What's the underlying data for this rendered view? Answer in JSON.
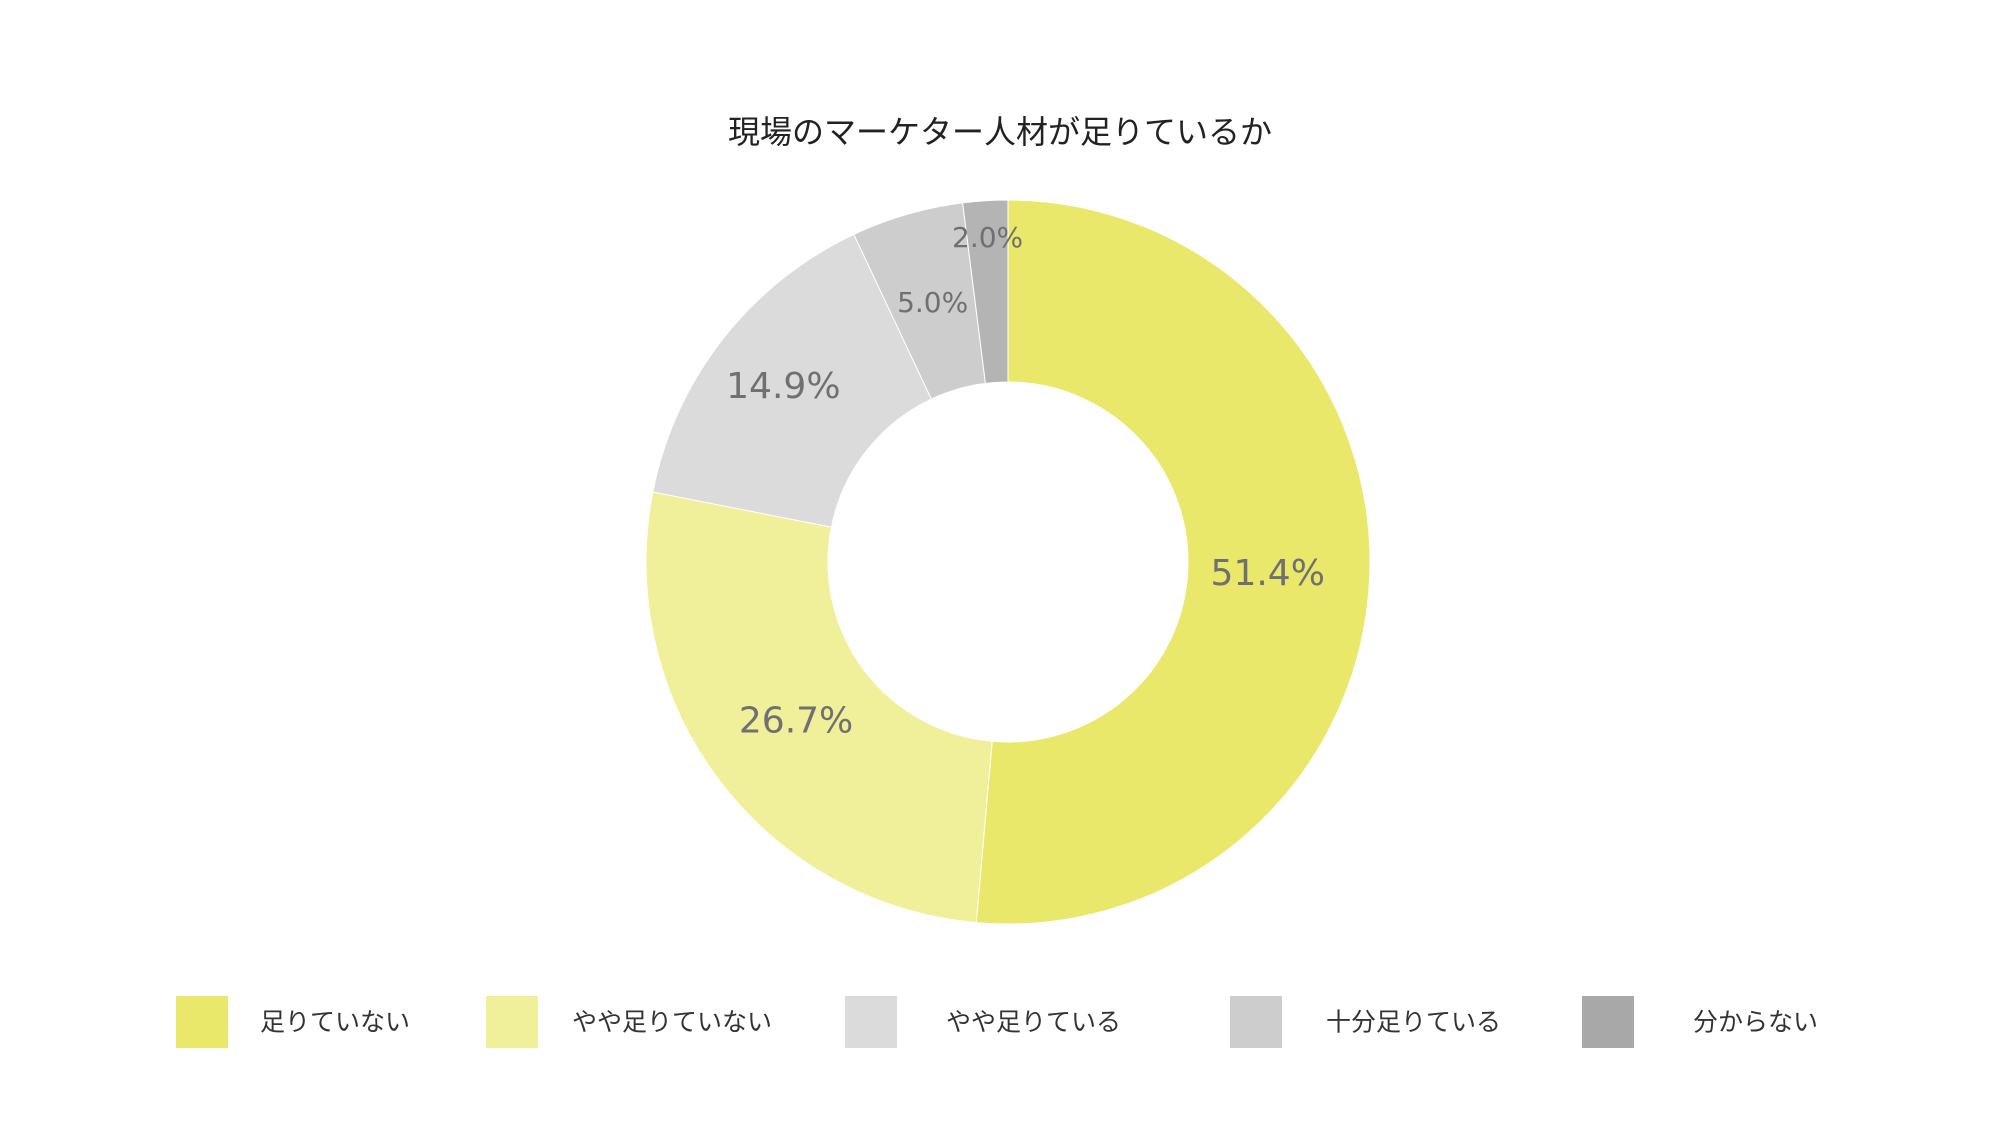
{
  "chart_data": {
    "type": "pie",
    "variant": "donut",
    "title": "現場のマーケター人材が足りているか",
    "slices": [
      {
        "label": "足りていない",
        "value": 51.4,
        "display": "51.4%",
        "color": "#e9e86a"
      },
      {
        "label": "やや足りていない",
        "value": 26.7,
        "display": "26.7%",
        "color": "#f1f09a"
      },
      {
        "label": "やや足りている",
        "value": 14.9,
        "display": "14.9%",
        "color": "#dbdbdb"
      },
      {
        "label": "十分足りている",
        "value": 5.0,
        "display": "5.0%",
        "color": "#cdcdcd"
      },
      {
        "label": "分からない",
        "value": 2.0,
        "display": "2.0%",
        "color": "#b4b4b4"
      }
    ],
    "legend_colors": [
      "#e9e86a",
      "#f1f09a",
      "#dbdbdb",
      "#cdcdcd",
      "#a8a8a8"
    ],
    "legend_position": "bottom",
    "start_angle": "12 o'clock",
    "direction": "clockwise"
  }
}
